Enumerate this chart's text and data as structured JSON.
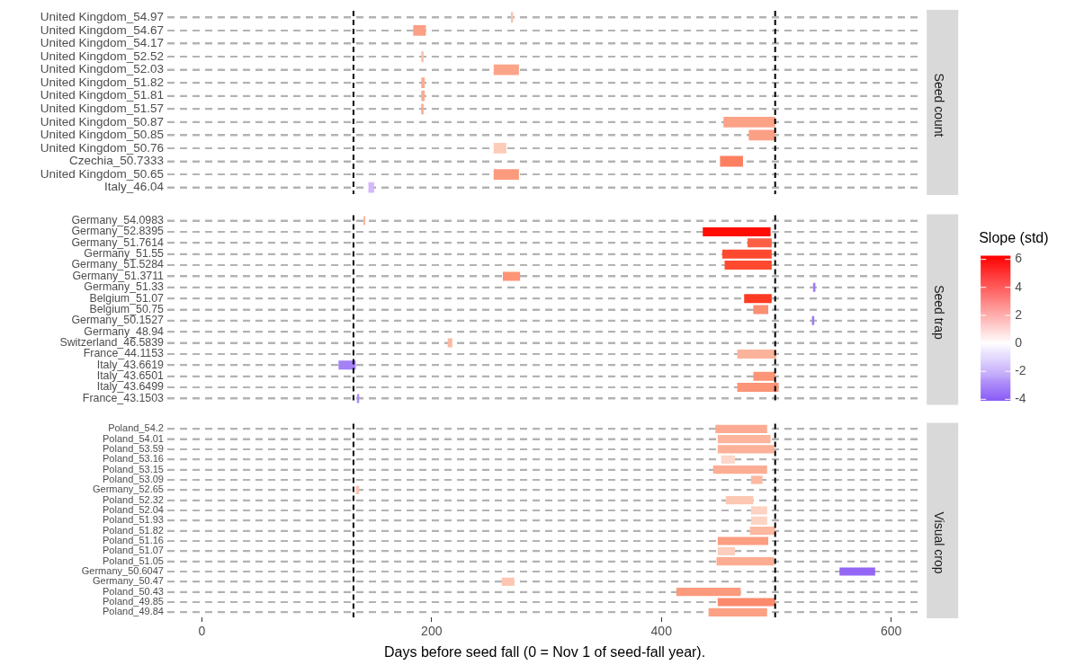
{
  "chart_data": [
    {
      "type": "bar",
      "orientation": "horizontal",
      "annotations": [
        "Seed count"
      ],
      "categories": [
        "United Kingdom_54.97",
        "United Kingdom_54.67",
        "United Kingdom_54.17",
        "United Kingdom_52.52",
        "United Kingdom_52.03",
        "United Kingdom_51.82",
        "United Kingdom_51.81",
        "United Kingdom_51.57",
        "United Kingdom_50.87",
        "United Kingdom_50.85",
        "United Kingdom_50.76",
        "Czechia_50.7333",
        "United Kingdom_50.65",
        "Italy_46.04"
      ],
      "base": [
        269,
        184,
        null,
        191,
        254,
        191,
        191,
        191,
        454,
        476,
        254,
        451,
        254,
        145
      ],
      "values": [
        2,
        11,
        null,
        2,
        22,
        3,
        3,
        2,
        45,
        23,
        11,
        20,
        22,
        5
      ],
      "colors": [
        "#fbc4b0",
        "#fca085",
        "#ffffff",
        "#fbbfa9",
        "#fca488",
        "#fcaa8f",
        "#fcaa8f",
        "#fcaa8f",
        "#fca287",
        "#fca085",
        "#fdcbb9",
        "#fc7f5f",
        "#fc9a7e",
        "#d4b8fb"
      ],
      "xlim": [
        -30,
        627
      ],
      "xticks": [
        0,
        200,
        400,
        600
      ],
      "tick_labels": "y",
      "grid": "y",
      "legend": false,
      "ref_lines": [
        {
          "axis": "x",
          "value": 132,
          "line_style": "dashed",
          "color": "#000000"
        },
        {
          "axis": "x",
          "value": 499,
          "line_style": "dashed",
          "color": "#000000"
        }
      ]
    },
    {
      "type": "bar",
      "orientation": "horizontal",
      "annotations": [
        "Seed trap"
      ],
      "categories": [
        "Germany_54.0983",
        "Germany_52.8395",
        "Germany_51.7614",
        "Germany_51.55",
        "Germany_51.5284",
        "Germany_51.3711",
        "Germany_51.33",
        "Belgium_51.07",
        "Belgium_50.75",
        "Germany_50.1527",
        "Germany_48.94",
        "Switzerland_46.5839",
        "France_44.1153",
        "Italy_43.6619",
        "Italy_43.6501",
        "Italy_43.6499",
        "France_43.1503"
      ],
      "base": [
        141,
        436,
        475,
        453,
        455,
        262,
        532,
        472,
        480,
        531,
        null,
        214,
        466,
        119,
        480,
        466,
        135
      ],
      "values": [
        1,
        59,
        21,
        43,
        41,
        15,
        2,
        24,
        13,
        2,
        null,
        4,
        34,
        15,
        19,
        36,
        2
      ],
      "colors": [
        "#fc8a6b",
        "#fe0d00",
        "#fc6044",
        "#fd4a2e",
        "#fd4a2e",
        "#fc9475",
        "#9e78fa",
        "#fd3a22",
        "#fc8e72",
        "#9e78fa",
        "#ffffff",
        "#fbb8a2",
        "#fcb39b",
        "#a481f7",
        "#fc9477",
        "#fc9477",
        "#ac8ef8"
      ],
      "xlim": [
        -30,
        627
      ],
      "xticks": [
        0,
        200,
        400,
        600
      ],
      "tick_labels": "y",
      "grid": "y",
      "legend": false,
      "clabel": "Slope (std)",
      "clim": [
        -4.07,
        6.27
      ],
      "cticks": [
        -4,
        -2,
        0,
        2,
        4,
        6
      ],
      "ref_lines": [
        {
          "axis": "x",
          "value": 132,
          "line_style": "dashed",
          "color": "#000000"
        },
        {
          "axis": "x",
          "value": 499,
          "line_style": "dashed",
          "color": "#000000"
        }
      ]
    },
    {
      "type": "bar",
      "orientation": "horizontal",
      "annotations": [
        "Visual crop"
      ],
      "xlabel": "Days before seed fall (0 = Nov 1 of seed-fall year).",
      "categories": [
        "Poland_54.2",
        "Poland_54.01",
        "Poland_53.59",
        "Poland_53.16",
        "Poland_53.15",
        "Poland_53.09",
        "Germany_52.65",
        "Poland_52.32",
        "Poland_52.04",
        "Poland_51.93",
        "Poland_51.82",
        "Poland_51.16",
        "Poland_51.07",
        "Poland_51.05",
        "Germany_50.6047",
        "Germany_50.47",
        "Poland_50.43",
        "Poland_49.85",
        "Poland_49.84"
      ],
      "base": [
        447,
        449,
        449,
        452,
        445,
        478,
        134,
        456,
        478,
        478,
        477,
        449,
        449,
        448,
        555,
        261,
        413,
        449,
        441
      ],
      "values": [
        45,
        46,
        49,
        12,
        47,
        10,
        3,
        24,
        14,
        14,
        22,
        44,
        15,
        50,
        31,
        11,
        56,
        50,
        51
      ],
      "colors": [
        "#fcab92",
        "#fcb49c",
        "#fcb198",
        "#fdd7c9",
        "#fcae95",
        "#fcb8a1",
        "#fcc4b1",
        "#fcc7b3",
        "#fdd3c4",
        "#fdd3c4",
        "#fcb8a1",
        "#fc9e81",
        "#fdcdbd",
        "#fcac92",
        "#9466f6",
        "#fcc6b3",
        "#fc9a7d",
        "#fc8a6c",
        "#fca084"
      ],
      "xlim": [
        -30,
        627
      ],
      "xticks": [
        0,
        200,
        400,
        600
      ],
      "grid": "y",
      "legend": false,
      "ref_lines": [
        {
          "axis": "x",
          "value": 132,
          "line_style": "dashed",
          "color": "#000000"
        },
        {
          "axis": "x",
          "value": 499,
          "line_style": "dashed",
          "color": "#000000"
        }
      ]
    }
  ]
}
